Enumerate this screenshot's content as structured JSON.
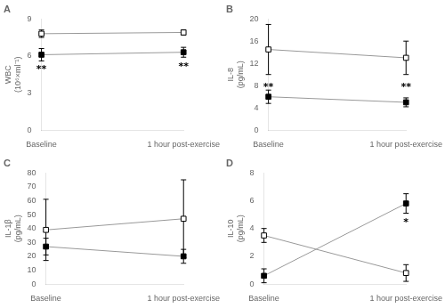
{
  "chart_data": [
    {
      "type": "line",
      "title": "A",
      "y_label": "WBC\n(10⁶×ml⁻¹)",
      "categories": [
        "Baseline",
        "1 hour post-exercise"
      ],
      "ylim": [
        0,
        9
      ],
      "yticks": [
        0,
        3,
        6,
        9
      ],
      "grid": false,
      "color": "#999999",
      "series": [
        {
          "color": "white",
          "marker": "square",
          "values": [
            7.8,
            7.9
          ],
          "errors": [
            0.3,
            0.2
          ]
        },
        {
          "color": "black",
          "marker": "square",
          "values": [
            6.1,
            6.3
          ],
          "errors": [
            0.5,
            0.4
          ]
        }
      ],
      "annotations": [
        {
          "text": "**",
          "x": "Baseline",
          "y": 5.3
        },
        {
          "text": "**",
          "x": "1 hour post-exercise",
          "y": 5.5
        }
      ]
    },
    {
      "type": "line",
      "title": "B",
      "y_label": "IL-8\n(pg/mL)",
      "categories": [
        "Baseline",
        "1 hour post-exercise"
      ],
      "ylim": [
        0,
        20
      ],
      "yticks": [
        0,
        4,
        8,
        12,
        16,
        20
      ],
      "grid": false,
      "color": "#999999",
      "series": [
        {
          "color": "white",
          "marker": "square",
          "values": [
            14.5,
            13.0
          ],
          "errors": [
            4.5,
            3.0
          ]
        },
        {
          "color": "black",
          "marker": "square",
          "values": [
            6.0,
            5.0
          ],
          "errors": [
            1.2,
            0.8
          ]
        }
      ],
      "annotations": [
        {
          "text": "**",
          "x": "Baseline",
          "y": 8.5
        },
        {
          "text": "**",
          "x": "1 hour post-exercise",
          "y": 8.5
        }
      ]
    },
    {
      "type": "line",
      "title": "C",
      "y_label": "IL-1β\n(pg/mL)",
      "categories": [
        "Baseline",
        "1 hour post-exercise"
      ],
      "ylim": [
        0,
        80
      ],
      "yticks": [
        0,
        10,
        20,
        30,
        40,
        50,
        60,
        70,
        80
      ],
      "grid": false,
      "color": "#999999",
      "series": [
        {
          "color": "white",
          "marker": "square",
          "values": [
            39.0,
            47.0
          ],
          "errors": [
            22.0,
            28.0
          ]
        },
        {
          "color": "black",
          "marker": "square",
          "values": [
            27.0,
            20.0
          ],
          "errors": [
            6.0,
            5.0
          ]
        }
      ]
    },
    {
      "type": "line",
      "title": "D",
      "y_label": "IL-10\n(pg/mL)",
      "categories": [
        "Baseline",
        "1 hour post-exercise"
      ],
      "ylim": [
        0,
        8
      ],
      "yticks": [
        0,
        2,
        4,
        6,
        8
      ],
      "grid": false,
      "color": "#999999",
      "series": [
        {
          "color": "white",
          "marker": "square",
          "values": [
            3.5,
            0.8
          ],
          "errors": [
            0.5,
            0.6
          ]
        },
        {
          "color": "black",
          "marker": "square",
          "values": [
            0.6,
            5.8
          ],
          "errors": [
            0.5,
            0.7
          ]
        }
      ],
      "annotations": [
        {
          "text": "*",
          "x": "1 hour post-exercise",
          "y": 4.8
        }
      ]
    }
  ]
}
